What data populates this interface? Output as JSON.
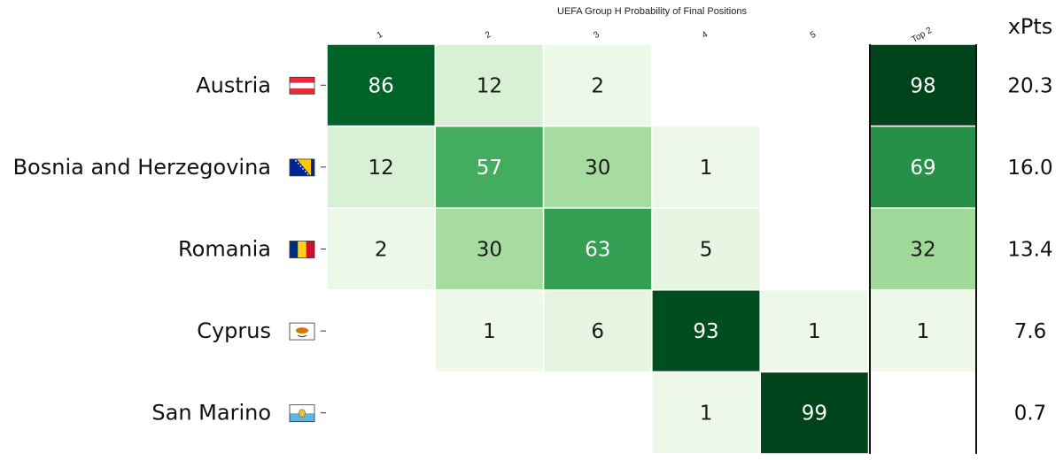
{
  "chart_data": {
    "type": "heatmap",
    "title": "UEFA Group H Probability of Final Positions",
    "columns": [
      "1",
      "2",
      "3",
      "4",
      "5"
    ],
    "top2_label": "Top 2",
    "xpts_label": "xPts",
    "rows": [
      {
        "team": "Austria",
        "flag": "austria-flag",
        "values": [
          86,
          12,
          2,
          null,
          null
        ],
        "top2": 98,
        "xpts": "20.3"
      },
      {
        "team": "Bosnia and Herzegovina",
        "flag": "bosnia-flag",
        "values": [
          12,
          57,
          30,
          1,
          null
        ],
        "top2": 69,
        "xpts": "16.0"
      },
      {
        "team": "Romania",
        "flag": "romania-flag",
        "values": [
          2,
          30,
          63,
          5,
          null
        ],
        "top2": 32,
        "xpts": "13.4"
      },
      {
        "team": "Cyprus",
        "flag": "cyprus-flag",
        "values": [
          null,
          1,
          6,
          93,
          1
        ],
        "top2": 1,
        "xpts": "7.6"
      },
      {
        "team": "San Marino",
        "flag": "san-marino-flag",
        "values": [
          null,
          null,
          null,
          1,
          99
        ],
        "top2": null,
        "xpts": "0.7"
      }
    ],
    "colormap": "Greens",
    "value_range": [
      0,
      100
    ]
  }
}
